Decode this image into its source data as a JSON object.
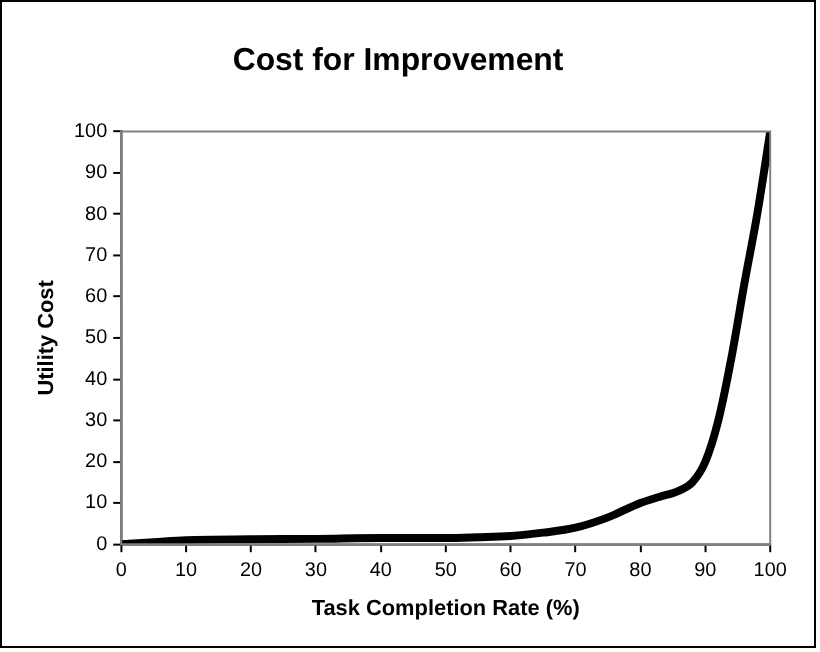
{
  "chart_data": {
    "type": "line",
    "title": "Cost for Improvement",
    "xlabel": "Task Completion Rate (%)",
    "ylabel": "Utility Cost",
    "x": [
      0,
      5,
      10,
      20,
      30,
      40,
      50,
      55,
      60,
      65,
      70,
      75,
      80,
      83,
      86,
      88,
      90,
      92,
      94,
      96,
      98,
      100
    ],
    "series": [
      {
        "color": "#000000",
        "values": [
          0,
          0.5,
          1,
          1.2,
          1.3,
          1.5,
          1.5,
          1.7,
          2,
          2.8,
          4,
          6.5,
          10,
          11.5,
          13,
          15,
          20,
          30,
          45,
          63,
          80,
          100
        ]
      }
    ],
    "xlim": [
      0,
      100
    ],
    "xticks": [
      0,
      10,
      20,
      30,
      40,
      50,
      60,
      70,
      80,
      90,
      100
    ],
    "ylim": [
      0,
      100
    ],
    "yticks": [
      0,
      10,
      20,
      30,
      40,
      50,
      60,
      70,
      80,
      90,
      100
    ],
    "grid": false,
    "legend": false,
    "marker": "none",
    "line_style": "solid"
  }
}
